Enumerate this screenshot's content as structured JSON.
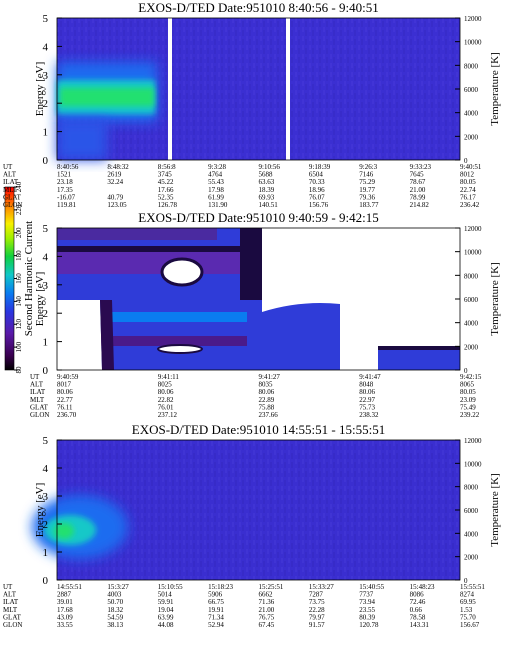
{
  "chart_data": [
    {
      "type": "spectrogram",
      "title": "EXOS-D/TED   Date:951010   8:40:56 - 9:40:51",
      "ylabel": "Energy [eV]",
      "y2label": "Temperature [K]",
      "ylim": [
        0,
        5
      ],
      "yticks": [
        0,
        1,
        2,
        3,
        4,
        5
      ],
      "y2lim": [
        0,
        12000
      ],
      "y2ticks": [
        0,
        2000,
        4000,
        6000,
        8000,
        10000,
        12000
      ],
      "ephemeris": [
        {
          "label": "UT",
          "values": [
            "8:40:56",
            "8:48:32",
            "8:56:8",
            "9:3:28",
            "9:10:56",
            "9:18:39",
            "9:26:3",
            "9:33:23",
            "9:40:51"
          ]
        },
        {
          "label": "ALT",
          "values": [
            "1521",
            "2619",
            "3745",
            "4764",
            "5688",
            "6504",
            "7146",
            "7645",
            "8012"
          ]
        },
        {
          "label": "ILAT",
          "values": [
            "23.18",
            "32.24",
            "45.22",
            "55.43",
            "63.63",
            "70.33",
            "75.29",
            "78.67",
            "80.05"
          ]
        },
        {
          "label": "MLT",
          "values": [
            "17.35",
            null,
            "17.66",
            "17.98",
            "18.39",
            "18.96",
            "19.77",
            "21.00",
            "22.74"
          ]
        },
        {
          "label": "GLAT",
          "values": [
            "-16.07",
            "40.79",
            "52.35",
            "61.99",
            "69.93",
            "76.07",
            "79.36",
            "78.99",
            "76.17"
          ]
        },
        {
          "label": "GLON",
          "values": [
            "119.81",
            "123.05",
            "126.78",
            "131.90",
            "140.51",
            "156.76",
            "183.77",
            "214.82",
            "236.42"
          ]
        }
      ]
    },
    {
      "type": "spectrogram",
      "title": "EXOS-D/TED   Date:951010   9:40:59 - 9:42:15",
      "ylabel": "Energy [eV]",
      "y2label": "Temperature [K]",
      "ylim": [
        0,
        5
      ],
      "yticks": [
        0,
        1,
        2,
        3,
        4,
        5
      ],
      "y2lim": [
        0,
        12000
      ],
      "y2ticks": [
        0,
        2000,
        4000,
        6000,
        8000,
        10000,
        12000
      ],
      "colorbar": {
        "label": "Second Harmonic Current",
        "lim": [
          80,
          240
        ],
        "ticks": [
          80,
          100,
          120,
          140,
          160,
          180,
          200,
          220,
          240
        ]
      },
      "ephemeris": [
        {
          "label": "UT",
          "values": [
            "9:40:59",
            "9:41:11",
            "9:41:27",
            "9:41:47",
            "9:42:15"
          ]
        },
        {
          "label": "ALT",
          "values": [
            "8017",
            "8025",
            "8035",
            "8048",
            "8065"
          ]
        },
        {
          "label": "ILAT",
          "values": [
            "80.06",
            "80.06",
            "80.06",
            "80.06",
            "80.05"
          ]
        },
        {
          "label": "MLT",
          "values": [
            "22.77",
            "22.82",
            "22.89",
            "22.97",
            "23.09"
          ]
        },
        {
          "label": "GLAT",
          "values": [
            "76.11",
            "76.01",
            "75.88",
            "75.73",
            "75.49"
          ]
        },
        {
          "label": "GLON",
          "values": [
            "236.70",
            "237.12",
            "237.66",
            "238.32",
            "239.22"
          ]
        }
      ]
    },
    {
      "type": "spectrogram",
      "title": "EXOS-D/TED   Date:951010   14:55:51 - 15:55:51",
      "ylabel": "Energy [eV]",
      "y2label": "Temperature [K]",
      "ylim": [
        0,
        5
      ],
      "yticks": [
        0,
        1,
        2,
        3,
        4,
        5
      ],
      "y2lim": [
        0,
        12000
      ],
      "y2ticks": [
        0,
        2000,
        4000,
        6000,
        8000,
        10000,
        12000
      ],
      "ephemeris": [
        {
          "label": "UT",
          "values": [
            "14:55:51",
            "15:3:27",
            "15:10:55",
            "15:18:23",
            "15:25:51",
            "15:33:27",
            "15:40:55",
            "15:48:23",
            "15:55:51"
          ]
        },
        {
          "label": "ALT",
          "values": [
            "2887",
            "4003",
            "5014",
            "5906",
            "6662",
            "7287",
            "7737",
            "8086",
            "8274"
          ]
        },
        {
          "label": "ILAT",
          "values": [
            "39.01",
            "50.70",
            "59.91",
            "66.75",
            "71.36",
            "73.75",
            "73.94",
            "72.46",
            "69.95"
          ]
        },
        {
          "label": "MLT",
          "values": [
            "17.68",
            "18.32",
            "19.04",
            "19.91",
            "21.00",
            "22.28",
            "23.55",
            "0.66",
            "1.53"
          ]
        },
        {
          "label": "GLAT",
          "values": [
            "43.09",
            "54.59",
            "63.99",
            "71.34",
            "76.75",
            "79.97",
            "80.39",
            "78.58",
            "75.70"
          ]
        },
        {
          "label": "GLON",
          "values": [
            "33.55",
            "38.13",
            "44.08",
            "52.94",
            "67.45",
            "91.57",
            "120.78",
            "143.31",
            "156.67"
          ]
        }
      ]
    }
  ]
}
